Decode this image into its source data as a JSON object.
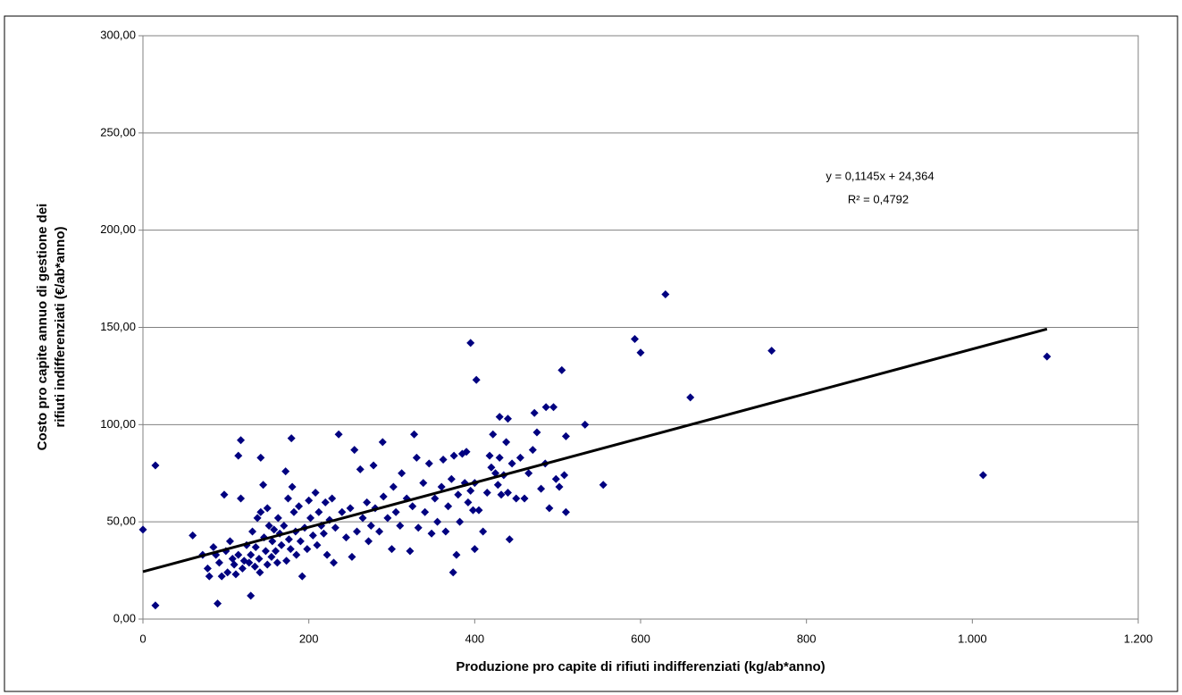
{
  "chart_data": {
    "type": "scatter",
    "x_label": "Produzione pro capite di rifiuti indifferenziati (kg/ab*anno)",
    "y_label": [
      "Costo pro capite annuo di gestione dei",
      "rifiuti indifferenziati (€/ab*anno)"
    ],
    "annotations": [
      "y = 0,1145x + 24,364",
      "R² = 0,4792"
    ],
    "trendline": {
      "slope": 0.1145,
      "intercept": 24.364,
      "x_start": 0,
      "x_end": 1090,
      "color": "#000000"
    },
    "xlim": [
      0,
      1200
    ],
    "xticks": [
      0,
      200,
      400,
      600,
      800,
      {
        "value": 1000,
        "label": "1.000"
      },
      {
        "value": 1200,
        "label": "1.200"
      }
    ],
    "ylim": [
      0,
      300
    ],
    "yticks": [
      {
        "value": 0,
        "label": "0,00"
      },
      {
        "value": 50,
        "label": "50,00"
      },
      {
        "value": 100,
        "label": "100,00"
      },
      {
        "value": 150,
        "label": "150,00"
      },
      {
        "value": 200,
        "label": "200,00"
      },
      {
        "value": 250,
        "label": "250,00"
      },
      {
        "value": 300,
        "label": "300,00"
      }
    ],
    "grid": true,
    "color": "#000080",
    "x": [
      0,
      15,
      15,
      90,
      130,
      630,
      593,
      600,
      758,
      660,
      1090,
      1013,
      395,
      402,
      505,
      533,
      555,
      510,
      510,
      486,
      495,
      472,
      430,
      440,
      374,
      378,
      442,
      400,
      236,
      327,
      289,
      179,
      118,
      115,
      142,
      98,
      60,
      72,
      78,
      80,
      85,
      88,
      92,
      95,
      100,
      102,
      105,
      108,
      110,
      112,
      115,
      118,
      120,
      122,
      125,
      128,
      130,
      132,
      135,
      136,
      138,
      140,
      141,
      142,
      145,
      146,
      148,
      150,
      150,
      152,
      155,
      156,
      158,
      160,
      162,
      163,
      165,
      167,
      170,
      172,
      173,
      175,
      176,
      178,
      180,
      182,
      184,
      185,
      188,
      190,
      192,
      195,
      198,
      200,
      202,
      205,
      208,
      210,
      212,
      215,
      218,
      220,
      222,
      225,
      228,
      230,
      232,
      240,
      245,
      250,
      252,
      255,
      258,
      262,
      265,
      270,
      272,
      275,
      278,
      280,
      285,
      290,
      295,
      300,
      302,
      305,
      310,
      312,
      318,
      322,
      325,
      330,
      332,
      338,
      340,
      345,
      348,
      352,
      355,
      360,
      362,
      365,
      368,
      372,
      375,
      380,
      382,
      385,
      388,
      390,
      392,
      395,
      398,
      400,
      405,
      410,
      415,
      418,
      420,
      422,
      425,
      428,
      430,
      432,
      435,
      438,
      440,
      445,
      450,
      455,
      460,
      465,
      470,
      475,
      480,
      485,
      490,
      498,
      502,
      508
    ],
    "values": [
      46,
      79,
      7,
      8,
      12,
      167,
      144,
      137,
      138,
      114,
      135,
      74,
      142,
      123,
      128,
      100,
      69,
      94,
      55,
      109,
      109,
      106,
      104,
      103,
      24,
      33,
      41,
      36,
      95,
      95,
      91,
      93,
      92,
      84,
      83,
      64,
      43,
      33,
      26,
      22,
      37,
      33,
      29,
      22,
      35,
      24,
      40,
      31,
      28,
      23,
      33,
      62,
      26,
      30,
      38,
      29,
      33,
      45,
      27,
      37,
      52,
      31,
      24,
      55,
      69,
      42,
      35,
      28,
      57,
      48,
      32,
      40,
      46,
      35,
      29,
      52,
      44,
      38,
      48,
      76,
      30,
      62,
      41,
      36,
      68,
      55,
      45,
      33,
      58,
      40,
      22,
      47,
      36,
      61,
      52,
      43,
      65,
      38,
      55,
      48,
      44,
      60,
      33,
      51,
      62,
      29,
      47,
      55,
      42,
      57,
      32,
      87,
      45,
      77,
      52,
      60,
      40,
      48,
      79,
      57,
      45,
      63,
      52,
      36,
      68,
      55,
      48,
      75,
      62,
      35,
      58,
      83,
      47,
      70,
      55,
      80,
      44,
      62,
      50,
      68,
      82,
      45,
      58,
      72,
      84,
      64,
      50,
      85,
      70,
      86,
      60,
      66,
      56,
      70,
      56,
      45,
      65,
      84,
      78,
      95,
      75,
      69,
      83,
      64,
      74,
      91,
      65,
      80,
      62,
      83,
      62,
      75,
      87,
      96,
      67,
      80,
      57,
      72,
      68,
      74
    ]
  }
}
